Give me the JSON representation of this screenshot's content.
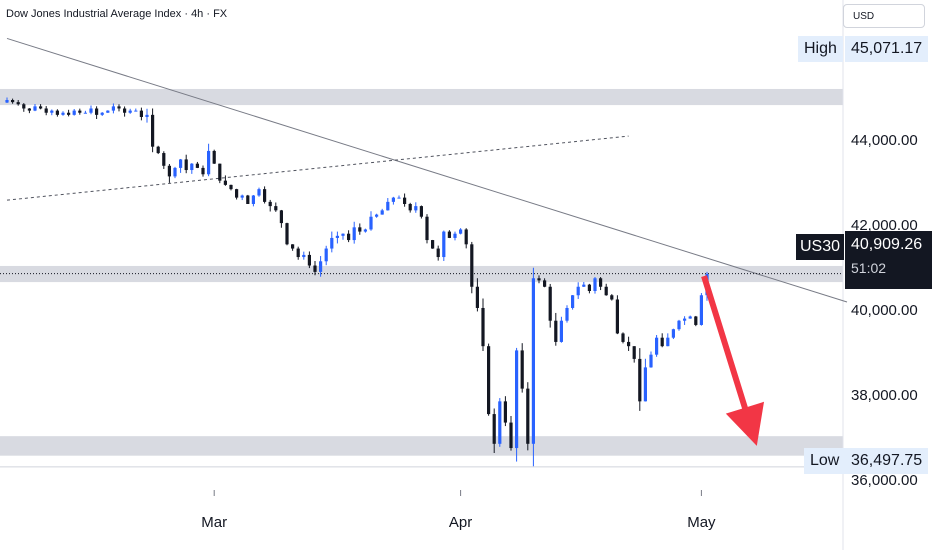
{
  "header": {
    "title": "Dow Jones Industrial Average Index · 4h · FX",
    "currency": "USD"
  },
  "price_tag": {
    "symbol": "US30",
    "price": "40,909.26",
    "countdown": "51:02"
  },
  "high_tag": {
    "label": "High",
    "value": "45,071.17"
  },
  "low_tag": {
    "label": "Low",
    "value": "36,497.75"
  },
  "colors": {
    "up": "#2962ff",
    "down": "#131722",
    "zone": "#d1d4dc",
    "arrow": "#f23645",
    "line": "#787b86"
  },
  "chart_data": {
    "type": "candlestick",
    "title": "Dow Jones Industrial Average Index · 4h · FX",
    "x_ticks": [
      "Mar",
      "Apr",
      "May"
    ],
    "y_ticks": [
      "44,000.00",
      "42,000.00",
      "40,000.00",
      "38,000.00",
      "36,000.00"
    ],
    "ylim": [
      35500,
      45900
    ],
    "levels": {
      "high": 45071.17,
      "low": 36497.75,
      "current": 40909.26
    },
    "zones": [
      [
        44880,
        45260
      ],
      [
        40710,
        41090
      ],
      [
        36620,
        37080
      ]
    ],
    "trendline": {
      "from": {
        "bar": 0,
        "y": 46450
      },
      "to": {
        "bar": 150,
        "y": 40240
      }
    },
    "channel_line": {
      "from": {
        "bar": 0,
        "y": 42640
      },
      "to": {
        "bar": 111,
        "y": 44150
      }
    },
    "arrow": {
      "from": {
        "bar": 125,
        "y": 40850
      },
      "to": {
        "bar": 133,
        "y": 36850
      }
    },
    "month_bars": {
      "Mar": 37,
      "Apr": 81,
      "May": 124
    },
    "closes": [
      45000,
      44950,
      44900,
      44800,
      44750,
      44850,
      44800,
      44700,
      44750,
      44650,
      44700,
      44650,
      44750,
      44700,
      44700,
      44800,
      44650,
      44700,
      44750,
      44850,
      44800,
      44700,
      44750,
      44750,
      44600,
      44650,
      43900,
      43750,
      43450,
      43200,
      43400,
      43600,
      43350,
      43500,
      43400,
      43250,
      43800,
      43500,
      43100,
      43000,
      42900,
      42700,
      42750,
      42550,
      42750,
      42900,
      42600,
      42500,
      42400,
      42100,
      41600,
      41500,
      41300,
      41350,
      41100,
      40950,
      41200,
      41500,
      41750,
      41800,
      41850,
      41700,
      42000,
      41900,
      41950,
      42250,
      42300,
      42400,
      42600,
      42700,
      42700,
      42550,
      42400,
      42500,
      42250,
      41700,
      41500,
      41300,
      41900,
      41750,
      41850,
      41950,
      41600,
      40600,
      40100,
      39200,
      37600,
      36900,
      37900,
      37400,
      36800,
      39100,
      38200,
      36900,
      40800,
      40750,
      40600,
      39800,
      39300,
      39800,
      40100,
      40400,
      40600,
      40650,
      40500,
      40800,
      40600,
      40400,
      40300,
      39500,
      39300,
      39200,
      38900,
      37900,
      38700,
      39000,
      39400,
      39200,
      39400,
      39600,
      39800,
      39850,
      39900,
      39700,
      40400,
      40900
    ]
  }
}
